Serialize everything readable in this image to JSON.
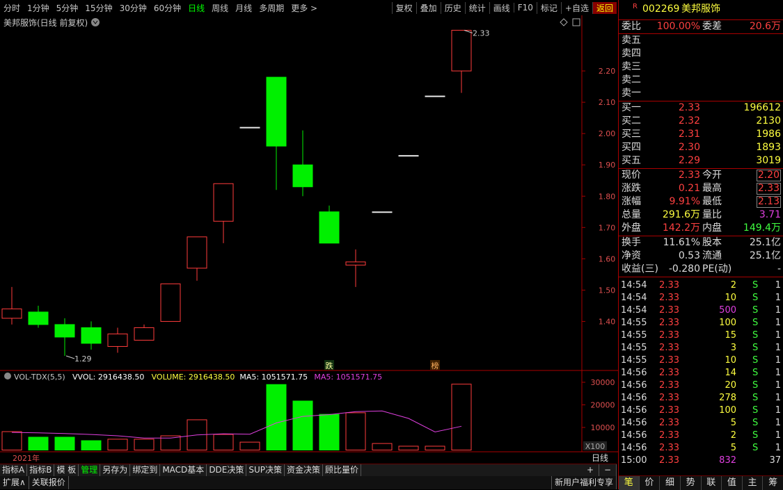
{
  "toolbar": {
    "periods": [
      "分时",
      "1分钟",
      "5分钟",
      "15分钟",
      "30分钟",
      "60分钟",
      "日线",
      "周线",
      "月线",
      "多周期",
      "更多 >"
    ],
    "tools": [
      "复权",
      "叠加",
      "历史",
      "统计",
      "画线",
      "F10",
      "标记",
      "+自选",
      "返回"
    ]
  },
  "chart_data": [
    {
      "type": "candlestick",
      "title": "美邦服饰(日线 前复权)",
      "ylim": [
        1.25,
        2.36
      ],
      "yticks": [
        {
          "value": 1.4,
          "label": "1.40"
        },
        {
          "value": 1.5,
          "label": "1.50"
        },
        {
          "value": 1.6,
          "label": "1.60"
        },
        {
          "value": 1.7,
          "label": "1.70"
        },
        {
          "value": 1.8,
          "label": "1.80"
        },
        {
          "value": 1.9,
          "label": "1.90"
        },
        {
          "value": 2.0,
          "label": "2.00"
        },
        {
          "value": 2.1,
          "label": "2.10"
        },
        {
          "value": 2.2,
          "label": "2.20"
        }
      ],
      "open": [
        1.41,
        1.43,
        1.39,
        1.38,
        1.32,
        1.34,
        1.4,
        1.57,
        1.72,
        2.02,
        2.18,
        1.9,
        1.75,
        1.58,
        1.75,
        1.93,
        2.12,
        2.2
      ],
      "high": [
        1.51,
        1.45,
        1.41,
        1.4,
        1.38,
        1.39,
        1.52,
        1.67,
        1.84,
        2.02,
        2.18,
        2.01,
        1.77,
        1.63,
        1.75,
        1.93,
        2.12,
        2.33
      ],
      "low": [
        1.39,
        1.38,
        1.29,
        1.31,
        1.3,
        1.34,
        1.4,
        1.53,
        1.65,
        2.02,
        1.82,
        1.8,
        1.65,
        1.51,
        1.75,
        1.93,
        2.12,
        2.13
      ],
      "close": [
        1.44,
        1.39,
        1.35,
        1.33,
        1.36,
        1.38,
        1.52,
        1.67,
        1.84,
        2.02,
        1.96,
        1.83,
        1.65,
        1.59,
        1.75,
        1.93,
        2.12,
        2.33
      ],
      "max_label": "2.33",
      "min_label": "1.29",
      "markers": [
        "跌",
        "榜"
      ],
      "x_label": "2021年",
      "period_label": "日线"
    },
    {
      "type": "volume",
      "indicator": "VOL-TDX(5,5)",
      "legend": [
        "VVOL: 2916438.50",
        "VOLUME: 2916438.50",
        "MA5: 1051571.75",
        "MA5: 1051571.75"
      ],
      "ylim": [
        0,
        34000
      ],
      "yticks": [
        10000,
        20000,
        30000
      ],
      "unit": "X100",
      "values": [
        8150,
        5700,
        5700,
        4150,
        4800,
        4800,
        6300,
        13400,
        6900,
        3500,
        29000,
        21700,
        15800,
        16500,
        2900,
        1700,
        1700,
        29164
      ],
      "ma5": [
        7800,
        7600,
        7300,
        6900,
        6300,
        5300,
        5300,
        6700,
        7200,
        7000,
        12000,
        14900,
        15700,
        17000,
        17300,
        14000,
        8000,
        10516
      ],
      "ma_color": "#e040e0"
    }
  ],
  "quote": {
    "marker": "R",
    "code": "002269",
    "name": "美邦服饰",
    "weibi": [
      "委比",
      "100.00%",
      "委差",
      "20.6万"
    ],
    "sell": [
      "卖五",
      "卖四",
      "卖三",
      "卖二",
      "卖一"
    ],
    "buy": [
      [
        "买一",
        "2.33",
        "196612"
      ],
      [
        "买二",
        "2.32",
        "2130"
      ],
      [
        "买三",
        "2.31",
        "1986"
      ],
      [
        "买四",
        "2.30",
        "1893"
      ],
      [
        "买五",
        "2.29",
        "3019"
      ]
    ],
    "fields": [
      [
        "现价",
        "2.33",
        "今开",
        "2.20"
      ],
      [
        "涨跌",
        "0.21",
        "最高",
        "2.33"
      ],
      [
        "涨幅",
        "9.91%",
        "最低",
        "2.13"
      ],
      [
        "总量",
        "291.6万",
        "量比",
        "3.71"
      ],
      [
        "外盘",
        "142.2万",
        "内盘",
        "149.4万"
      ]
    ],
    "fields2": [
      [
        "换手",
        "11.61%",
        "股本",
        "25.1亿"
      ],
      [
        "净资",
        "0.53",
        "流通",
        "25.1亿"
      ],
      [
        "收益(三)",
        "-0.280",
        "PE(动)",
        "-"
      ]
    ],
    "trades": [
      {
        "time": "14:54",
        "price": "2.33",
        "vol": "2",
        "side": "S",
        "count": "1"
      },
      {
        "time": "14:54",
        "price": "2.33",
        "vol": "10",
        "side": "S",
        "count": "1"
      },
      {
        "time": "14:54",
        "price": "2.33",
        "vol": "500",
        "side": "S",
        "count": "1"
      },
      {
        "time": "14:55",
        "price": "2.33",
        "vol": "100",
        "side": "S",
        "count": "1"
      },
      {
        "time": "14:55",
        "price": "2.33",
        "vol": "15",
        "side": "S",
        "count": "1"
      },
      {
        "time": "14:55",
        "price": "2.33",
        "vol": "3",
        "side": "S",
        "count": "1"
      },
      {
        "time": "14:55",
        "price": "2.33",
        "vol": "10",
        "side": "S",
        "count": "1"
      },
      {
        "time": "14:56",
        "price": "2.33",
        "vol": "14",
        "side": "S",
        "count": "1"
      },
      {
        "time": "14:56",
        "price": "2.33",
        "vol": "20",
        "side": "S",
        "count": "1"
      },
      {
        "time": "14:56",
        "price": "2.33",
        "vol": "278",
        "side": "S",
        "count": "1"
      },
      {
        "time": "14:56",
        "price": "2.33",
        "vol": "100",
        "side": "S",
        "count": "1"
      },
      {
        "time": "14:56",
        "price": "2.33",
        "vol": "5",
        "side": "S",
        "count": "1"
      },
      {
        "time": "14:56",
        "price": "2.33",
        "vol": "2",
        "side": "S",
        "count": "1"
      },
      {
        "time": "14:56",
        "price": "2.33",
        "vol": "5",
        "side": "S",
        "count": "1"
      },
      {
        "time": "15:00",
        "price": "2.33",
        "vol": "832",
        "count": "37"
      }
    ],
    "tabs": [
      "笔",
      "价",
      "细",
      "势",
      "联",
      "值",
      "主",
      "筹"
    ]
  },
  "bottom": {
    "tabs": [
      "指标A",
      "指标B",
      "模 板",
      "管理",
      "另存为",
      "绑定到",
      "MACD基本",
      "DDE决策",
      "SUP决策",
      "资金决策",
      "顾比量价"
    ],
    "row2": [
      "扩展∧",
      "关联报价"
    ],
    "promo": "新用户福利专享",
    "buttons": [
      "+",
      "−"
    ]
  }
}
